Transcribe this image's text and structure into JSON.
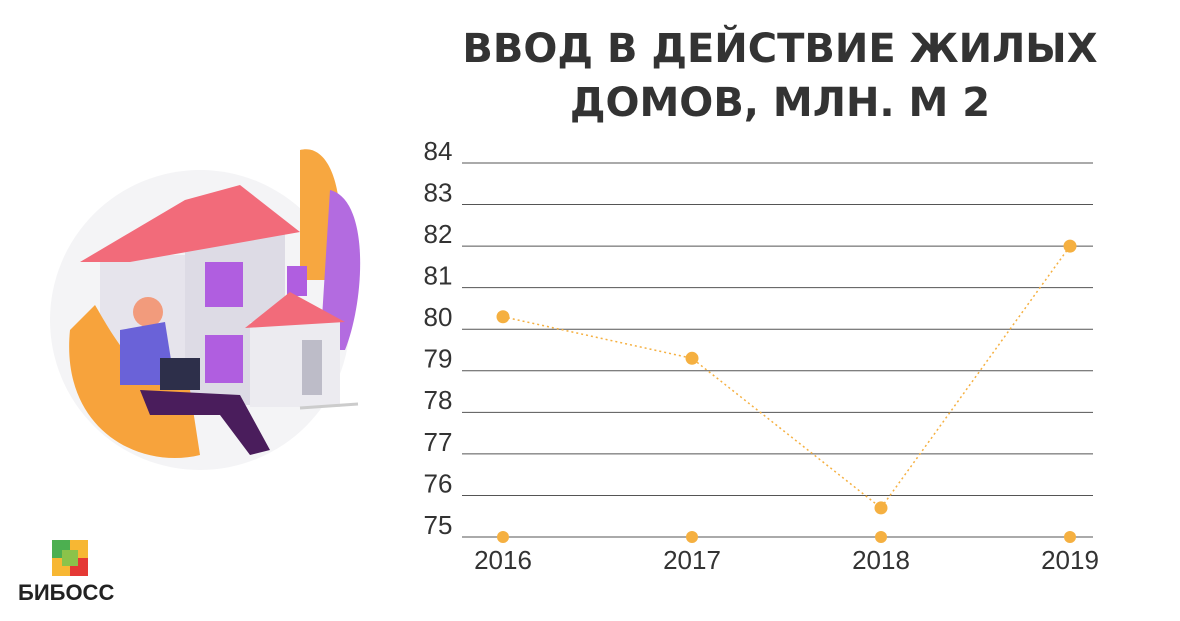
{
  "chart_data": {
    "type": "line",
    "title": "ВВОД В ДЕЙСТВИЕ ЖИЛЫХ ДОМОВ, МЛН. М 2",
    "categories": [
      "2016",
      "2017",
      "2018",
      "2019"
    ],
    "values": [
      80.3,
      79.3,
      75.7,
      82.0
    ],
    "color": "#f5b041",
    "ylim": [
      75,
      84
    ],
    "yticks": [
      75,
      76,
      77,
      78,
      79,
      80,
      81,
      82,
      83,
      84
    ],
    "grid": true
  },
  "logo": "БИБОСС"
}
